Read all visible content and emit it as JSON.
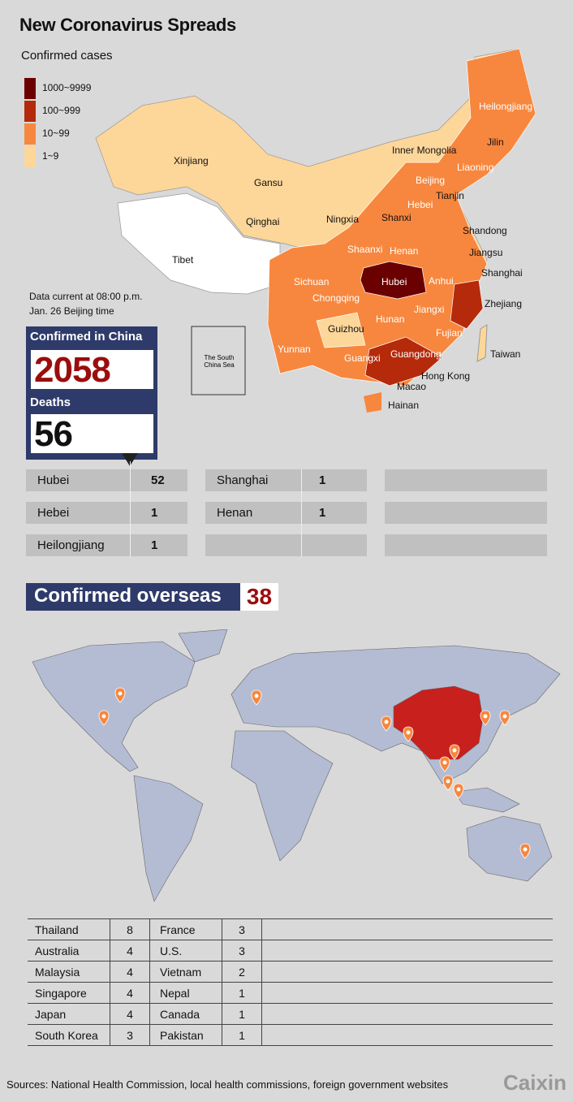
{
  "title": "New Coronavirus Spreads",
  "subtitle": "Confirmed cases",
  "legend": [
    {
      "label": "1000~9999",
      "color": "#6b0000"
    },
    {
      "label": "100~999",
      "color": "#b52a0a"
    },
    {
      "label": "10~99",
      "color": "#f7873e"
    },
    {
      "label": "1~9",
      "color": "#fdd699"
    }
  ],
  "provinces": [
    {
      "name": "Heilongjiang",
      "level": "10~99"
    },
    {
      "name": "Jilin",
      "level": "1~9"
    },
    {
      "name": "Inner Mongolia",
      "level": "1~9"
    },
    {
      "name": "Liaoning",
      "level": "10~99"
    },
    {
      "name": "Xinjiang",
      "level": "1~9"
    },
    {
      "name": "Gansu",
      "level": "1~9"
    },
    {
      "name": "Beijing",
      "level": "10~99"
    },
    {
      "name": "Tianjin",
      "level": "10~99"
    },
    {
      "name": "Hebei",
      "level": "10~99"
    },
    {
      "name": "Qinghai",
      "level": "1~9"
    },
    {
      "name": "Ningxia",
      "level": "1~9"
    },
    {
      "name": "Shanxi",
      "level": "1~9"
    },
    {
      "name": "Shandong",
      "level": "10~99"
    },
    {
      "name": "Tibet",
      "level": "none"
    },
    {
      "name": "Shaanxi",
      "level": "10~99"
    },
    {
      "name": "Henan",
      "level": "10~99"
    },
    {
      "name": "Jiangsu",
      "level": "10~99"
    },
    {
      "name": "Shanghai",
      "level": "10~99"
    },
    {
      "name": "Hubei",
      "level": "1000~9999"
    },
    {
      "name": "Anhui",
      "level": "10~99"
    },
    {
      "name": "Sichuan",
      "level": "10~99"
    },
    {
      "name": "Chongqing",
      "level": "10~99"
    },
    {
      "name": "Zhejiang",
      "level": "100~999"
    },
    {
      "name": "Jiangxi",
      "level": "10~99"
    },
    {
      "name": "Hunan",
      "level": "10~99"
    },
    {
      "name": "Guizhou",
      "level": "1~9"
    },
    {
      "name": "Fujian",
      "level": "10~99"
    },
    {
      "name": "Yunnan",
      "level": "10~99"
    },
    {
      "name": "Taiwan",
      "level": "1~9"
    },
    {
      "name": "Guangxi",
      "level": "10~99"
    },
    {
      "name": "Guangdong",
      "level": "100~999"
    },
    {
      "name": "Hong Kong",
      "level": "1~9"
    },
    {
      "name": "Macao",
      "level": "1~9"
    },
    {
      "name": "Hainan",
      "level": "10~99"
    }
  ],
  "inset_label": "The South China Sea",
  "current": {
    "line1": "Data current at 08:00 p.m.",
    "line2": "Jan. 26 Beijing time"
  },
  "stats": {
    "confirmed_label": "Confirmed in China",
    "confirmed": "2058",
    "deaths_label": "Deaths",
    "deaths": "56"
  },
  "deaths_by_province": [
    {
      "name": "Hubei",
      "value": "52"
    },
    {
      "name": "Shanghai",
      "value": "1"
    },
    {
      "name": "Hebei",
      "value": "1"
    },
    {
      "name": "Henan",
      "value": "1"
    },
    {
      "name": "Heilongjiang",
      "value": "1"
    }
  ],
  "overseas": {
    "label": "Confirmed overseas",
    "value": "38"
  },
  "overseas_table": [
    [
      "Thailand",
      "8",
      "France",
      "3"
    ],
    [
      "Australia",
      "4",
      "U.S.",
      "3"
    ],
    [
      "Malaysia",
      "4",
      "Vietnam",
      "2"
    ],
    [
      "Singapore",
      "4",
      "Nepal",
      "1"
    ],
    [
      "Japan",
      "4",
      "Canada",
      "1"
    ],
    [
      "South Korea",
      "3",
      "Pakistan",
      "1"
    ]
  ],
  "colors": {
    "navy": "#2e3b6a",
    "china_world": "#c8201c",
    "land": "#b4bcd4",
    "pin": "#f7873e",
    "value_red": "#9b0d0d"
  },
  "sources": "Sources: National Health Commission, local health commissions, foreign government websites",
  "logo": "Caixin"
}
